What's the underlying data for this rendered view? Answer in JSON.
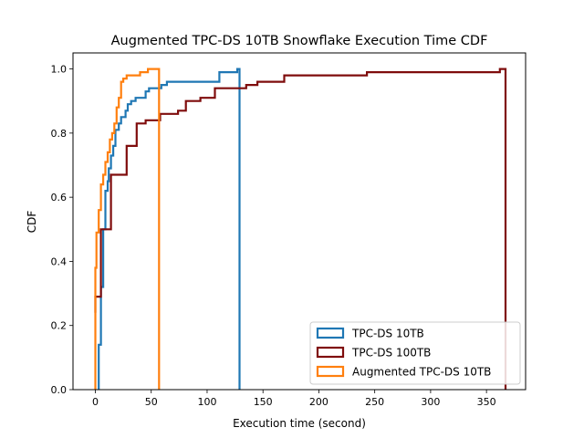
{
  "chart_data": {
    "type": "line",
    "title": "Augmented TPC-DS 10TB Snowflake Execution Time CDF",
    "xlabel": "Execution time (second)",
    "ylabel": "CDF",
    "xlim": [
      -20,
      385
    ],
    "ylim": [
      0,
      1.05
    ],
    "xticks": [
      0,
      50,
      100,
      150,
      200,
      250,
      300,
      350
    ],
    "yticks": [
      0.0,
      0.2,
      0.4,
      0.6,
      0.8,
      1.0
    ],
    "xtick_labels": [
      "0",
      "50",
      "100",
      "150",
      "200",
      "250",
      "300",
      "350"
    ],
    "ytick_labels": [
      "0.0",
      "0.2",
      "0.4",
      "0.6",
      "0.8",
      "1.0"
    ],
    "grid": false,
    "legend_position": "lower-right",
    "series": [
      {
        "name": "TPC-DS 10TB",
        "color": "#1f77b4",
        "steps": [
          [
            3,
            0.0
          ],
          [
            3,
            0.14
          ],
          [
            5,
            0.14
          ],
          [
            5,
            0.32
          ],
          [
            7,
            0.32
          ],
          [
            7,
            0.5
          ],
          [
            9,
            0.5
          ],
          [
            9,
            0.62
          ],
          [
            11,
            0.62
          ],
          [
            11,
            0.65
          ],
          [
            12,
            0.65
          ],
          [
            12,
            0.69
          ],
          [
            14,
            0.69
          ],
          [
            14,
            0.73
          ],
          [
            16,
            0.73
          ],
          [
            16,
            0.76
          ],
          [
            18,
            0.76
          ],
          [
            18,
            0.81
          ],
          [
            21,
            0.81
          ],
          [
            21,
            0.83
          ],
          [
            23,
            0.83
          ],
          [
            23,
            0.85
          ],
          [
            27,
            0.85
          ],
          [
            27,
            0.87
          ],
          [
            29,
            0.87
          ],
          [
            29,
            0.89
          ],
          [
            32,
            0.89
          ],
          [
            32,
            0.9
          ],
          [
            36,
            0.9
          ],
          [
            36,
            0.91
          ],
          [
            45,
            0.91
          ],
          [
            45,
            0.93
          ],
          [
            48,
            0.93
          ],
          [
            48,
            0.94
          ],
          [
            59,
            0.94
          ],
          [
            59,
            0.95
          ],
          [
            64,
            0.95
          ],
          [
            64,
            0.96
          ],
          [
            111,
            0.96
          ],
          [
            111,
            0.99
          ],
          [
            127,
            0.99
          ],
          [
            127,
            1.0
          ],
          [
            129,
            1.0
          ],
          [
            129,
            0.0
          ]
        ]
      },
      {
        "name": "TPC-DS 100TB",
        "color": "#7f0c0c",
        "steps": [
          [
            0,
            0.24
          ],
          [
            0,
            0.29
          ],
          [
            5,
            0.29
          ],
          [
            5,
            0.5
          ],
          [
            14,
            0.5
          ],
          [
            14,
            0.67
          ],
          [
            28,
            0.67
          ],
          [
            28,
            0.76
          ],
          [
            37,
            0.76
          ],
          [
            37,
            0.83
          ],
          [
            45,
            0.83
          ],
          [
            45,
            0.84
          ],
          [
            58,
            0.84
          ],
          [
            58,
            0.86
          ],
          [
            74,
            0.86
          ],
          [
            74,
            0.87
          ],
          [
            81,
            0.87
          ],
          [
            81,
            0.9
          ],
          [
            94,
            0.9
          ],
          [
            94,
            0.91
          ],
          [
            107,
            0.91
          ],
          [
            107,
            0.94
          ],
          [
            135,
            0.94
          ],
          [
            135,
            0.95
          ],
          [
            145,
            0.95
          ],
          [
            145,
            0.96
          ],
          [
            169,
            0.96
          ],
          [
            169,
            0.98
          ],
          [
            243,
            0.98
          ],
          [
            243,
            0.99
          ],
          [
            362,
            0.99
          ],
          [
            362,
            1.0
          ],
          [
            367,
            1.0
          ],
          [
            367,
            0.0
          ]
        ]
      },
      {
        "name": "Augmented TPC-DS 10TB",
        "color": "#ff7f0e",
        "steps": [
          [
            0,
            0.0
          ],
          [
            0,
            0.38
          ],
          [
            1,
            0.38
          ],
          [
            1,
            0.49
          ],
          [
            3,
            0.49
          ],
          [
            3,
            0.56
          ],
          [
            5,
            0.56
          ],
          [
            5,
            0.64
          ],
          [
            7,
            0.64
          ],
          [
            7,
            0.67
          ],
          [
            9,
            0.67
          ],
          [
            9,
            0.71
          ],
          [
            11,
            0.71
          ],
          [
            11,
            0.74
          ],
          [
            13,
            0.74
          ],
          [
            13,
            0.78
          ],
          [
            15,
            0.78
          ],
          [
            15,
            0.8
          ],
          [
            17,
            0.8
          ],
          [
            17,
            0.83
          ],
          [
            19,
            0.83
          ],
          [
            19,
            0.88
          ],
          [
            21,
            0.88
          ],
          [
            21,
            0.91
          ],
          [
            23,
            0.91
          ],
          [
            23,
            0.96
          ],
          [
            25,
            0.96
          ],
          [
            25,
            0.97
          ],
          [
            28,
            0.97
          ],
          [
            28,
            0.98
          ],
          [
            40,
            0.98
          ],
          [
            40,
            0.99
          ],
          [
            47,
            0.99
          ],
          [
            47,
            1.0
          ],
          [
            57,
            1.0
          ],
          [
            57,
            0.0
          ]
        ]
      }
    ]
  }
}
